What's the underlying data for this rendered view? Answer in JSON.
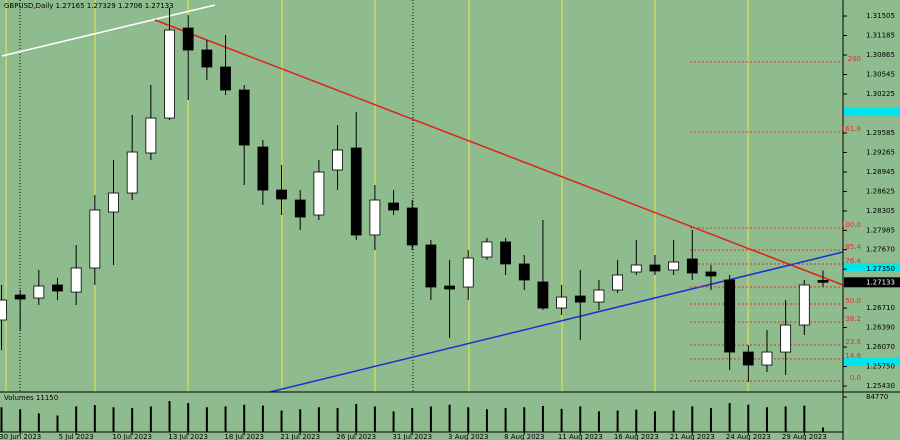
{
  "chart_data": {
    "type": "candlestick",
    "symbol": "GBPUSD,Daily",
    "volume_title": "Volumes",
    "categories": [
      null,
      "30 Jun 2023",
      null,
      null,
      "5 Jul 2023",
      null,
      null,
      "10 Jul 2023",
      null,
      null,
      "13 Jul 2023",
      null,
      null,
      "18 Jul 2023",
      null,
      null,
      "21 Jul 2023",
      null,
      null,
      "26 Jul 2023",
      null,
      null,
      "31 Jul 2023",
      null,
      null,
      "3 Aug 2023",
      null,
      null,
      "8 Aug 2023",
      null,
      null,
      "11 Aug 2023",
      null,
      null,
      "16 Aug 2023",
      null,
      null,
      "21 Aug 2023",
      null,
      null,
      "24 Aug 2023",
      null,
      null,
      "29 Aug 2023",
      null
    ],
    "open": [
      1.26514,
      1.26924,
      1.26875,
      1.27089,
      1.26973,
      1.27368,
      1.28287,
      1.28599,
      1.29256,
      1.2983,
      1.31308,
      1.30947,
      1.30668,
      1.3029,
      1.29354,
      1.28648,
      1.28484,
      1.28238,
      1.28977,
      1.29338,
      1.2791,
      1.28435,
      1.28353,
      1.27746,
      1.27072,
      1.27056,
      1.27548,
      1.27796,
      1.27434,
      1.27138,
      1.26711,
      1.26908,
      1.26809,
      1.27006,
      1.27302,
      1.27417,
      1.27335,
      1.27516,
      1.27302,
      1.27171,
      1.25988,
      1.25775,
      1.25988,
      1.26432,
      1.27165
    ],
    "high": [
      1.27089,
      1.27006,
      1.27335,
      1.27204,
      1.27746,
      1.28566,
      1.29141,
      1.2988,
      1.30372,
      1.31636,
      1.31521,
      1.31111,
      1.31193,
      1.30372,
      1.29469,
      1.29059,
      1.28648,
      1.29141,
      1.29715,
      1.29929,
      1.2873,
      1.28648,
      1.28484,
      1.27829,
      1.27499,
      1.27663,
      1.27861,
      1.27861,
      1.27581,
      1.28156,
      1.27089,
      1.27335,
      1.27171,
      1.27499,
      1.27829,
      1.27581,
      1.27829,
      1.27992,
      1.27417,
      1.27253,
      1.26103,
      1.2635,
      1.26842,
      1.27171,
      1.27329
    ],
    "low": [
      1.26021,
      1.2635,
      1.2676,
      1.26842,
      1.2676,
      1.27089,
      1.27417,
      1.28484,
      1.29141,
      1.29798,
      1.30126,
      1.30454,
      1.30208,
      1.2873,
      1.28402,
      1.28238,
      1.27992,
      1.28156,
      1.28648,
      1.27829,
      1.27663,
      1.28238,
      1.27663,
      1.26842,
      1.26218,
      1.26842,
      1.27499,
      1.27253,
      1.27006,
      1.26678,
      1.26596,
      1.26185,
      1.26678,
      1.26957,
      1.27253,
      1.27253,
      1.27253,
      1.27171,
      1.27006,
      1.25693,
      1.25496,
      1.2566,
      1.25611,
      1.26268,
      1.2706
    ],
    "close": [
      1.26842,
      1.26859,
      1.27072,
      1.2699,
      1.27368,
      1.2832,
      1.28599,
      1.29272,
      1.2983,
      1.31275,
      1.30947,
      1.30668,
      1.3029,
      1.29387,
      1.28648,
      1.28501,
      1.28205,
      1.28944,
      1.29305,
      1.2791,
      1.28484,
      1.2832,
      1.27746,
      1.27056,
      1.27023,
      1.27532,
      1.27796,
      1.27434,
      1.27171,
      1.26711,
      1.26891,
      1.26809,
      1.27006,
      1.27253,
      1.27417,
      1.27319,
      1.27466,
      1.27286,
      1.27237,
      1.25988,
      1.25775,
      1.25988,
      1.26432,
      1.27089,
      1.27133
    ],
    "volumes": [
      60000,
      55000,
      45000,
      40000,
      62000,
      65000,
      60000,
      58000,
      62000,
      75000,
      70000,
      60000,
      62000,
      66000,
      64000,
      52000,
      55000,
      60000,
      58000,
      68000,
      62000,
      50000,
      58000,
      62000,
      66000,
      60000,
      55000,
      58000,
      60000,
      63000,
      56000,
      62000,
      50000,
      52000,
      54000,
      50000,
      52000,
      62000,
      58000,
      70000,
      66000,
      60000,
      62000,
      64000,
      11150
    ],
    "bull_color": "#ffffff",
    "bear_color": "#000000",
    "ylim": [
      1.25332,
      1.31768
    ],
    "yticks": [
      1.31505,
      1.31185,
      1.30865,
      1.30545,
      1.30225,
      1.29585,
      1.29265,
      1.28945,
      1.28625,
      1.28305,
      1.27985,
      {
        "value": 1.2767,
        "label": "1.27670"
      },
      {
        "value": 1.2735,
        "label": "1.27350"
      },
      {
        "value": 1.2671,
        "label": "1.26710"
      },
      {
        "value": 1.2639,
        "label": "1.26390"
      },
      {
        "value": 1.2607,
        "label": "1.26070"
      },
      {
        "value": 1.2575,
        "label": "1.25750"
      },
      {
        "value": 1.2543,
        "label": "1.25430"
      }
    ],
    "vlim": [
      0,
      84770
    ],
    "vticks": [
      84770
    ],
    "fib_levels": [
      {
        "value": 1.3075,
        "label": "200"
      },
      {
        "value": 1.29601,
        "label": "161.8"
      },
      {
        "value": 1.28024,
        "label": "100.0"
      },
      {
        "value": 1.27663,
        "label": "85.4"
      },
      {
        "value": 1.27433,
        "label": "76.4"
      },
      {
        "value": 1.27056,
        "label": "61.8"
      },
      {
        "value": 1.26777,
        "label": "50.0"
      },
      {
        "value": 1.26481,
        "label": "38.2"
      },
      {
        "value": 1.26103,
        "label": "23.6"
      },
      {
        "value": 1.25875,
        "label": "14.6"
      },
      {
        "value": 1.25512,
        "label": "0.0"
      }
    ]
  }
}
